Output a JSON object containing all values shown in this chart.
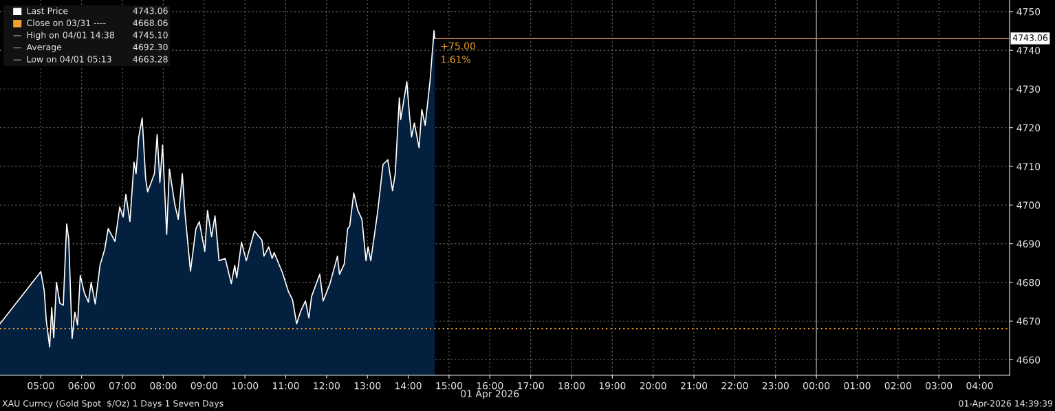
{
  "chart_data": {
    "type": "area",
    "x": [
      "2026-04-01T04:00",
      "2026-04-01T05:00",
      "2026-04-01T05:05",
      "2026-04-01T05:08",
      "2026-04-01T05:13",
      "2026-04-01T05:16",
      "2026-04-01T05:19",
      "2026-04-01T05:23",
      "2026-04-01T05:28",
      "2026-04-01T05:33",
      "2026-04-01T05:38",
      "2026-04-01T05:41",
      "2026-04-01T05:46",
      "2026-04-01T05:50",
      "2026-04-01T05:54",
      "2026-04-01T05:58",
      "2026-04-01T06:04",
      "2026-04-01T06:10",
      "2026-04-01T06:14",
      "2026-04-01T06:20",
      "2026-04-01T06:27",
      "2026-04-01T06:34",
      "2026-04-01T06:39",
      "2026-04-01T06:49",
      "2026-04-01T06:56",
      "2026-04-01T07:01",
      "2026-04-01T07:05",
      "2026-04-01T07:11",
      "2026-04-01T07:17",
      "2026-04-01T07:20",
      "2026-04-01T07:24",
      "2026-04-01T07:29",
      "2026-04-01T07:34",
      "2026-04-01T07:37",
      "2026-04-01T07:47",
      "2026-04-01T07:51",
      "2026-04-01T07:55",
      "2026-04-01T07:59",
      "2026-04-01T08:05",
      "2026-04-01T08:09",
      "2026-04-01T08:17",
      "2026-04-01T08:22",
      "2026-04-01T08:28",
      "2026-04-01T08:32",
      "2026-04-01T08:40",
      "2026-04-01T08:48",
      "2026-04-01T08:53",
      "2026-04-01T09:01",
      "2026-04-01T09:05",
      "2026-04-01T09:11",
      "2026-04-01T09:16",
      "2026-04-01T09:22",
      "2026-04-01T09:31",
      "2026-04-01T09:40",
      "2026-04-01T09:45",
      "2026-04-01T09:48",
      "2026-04-01T09:55",
      "2026-04-01T10:02",
      "2026-04-01T10:14",
      "2026-04-01T10:25",
      "2026-04-01T10:28",
      "2026-04-01T10:35",
      "2026-04-01T10:40",
      "2026-04-01T10:43",
      "2026-04-01T10:55",
      "2026-04-01T11:04",
      "2026-04-01T11:10",
      "2026-04-01T11:16",
      "2026-04-01T11:22",
      "2026-04-01T11:29",
      "2026-04-01T11:34",
      "2026-04-01T11:38",
      "2026-04-01T11:50",
      "2026-04-01T11:55",
      "2026-04-01T12:05",
      "2026-04-01T12:16",
      "2026-04-01T12:19",
      "2026-04-01T12:26",
      "2026-04-01T12:31",
      "2026-04-01T12:34",
      "2026-04-01T12:40",
      "2026-04-01T12:46",
      "2026-04-01T12:52",
      "2026-04-01T12:58",
      "2026-04-01T13:01",
      "2026-04-01T13:05",
      "2026-04-01T13:15",
      "2026-04-01T13:23",
      "2026-04-01T13:30",
      "2026-04-01T13:37",
      "2026-04-01T13:41",
      "2026-04-01T13:47",
      "2026-04-01T13:49",
      "2026-04-01T13:58",
      "2026-04-01T14:02",
      "2026-04-01T14:05",
      "2026-04-01T14:09",
      "2026-04-01T14:16",
      "2026-04-01T14:20",
      "2026-04-01T14:25",
      "2026-04-01T14:32",
      "2026-04-01T14:38",
      "2026-04-01T14:39"
    ],
    "series": [
      {
        "name": "Last Price",
        "color": "#ffffff",
        "values": [
          4669.3,
          4682.8,
          4677.9,
          4670.2,
          4663.3,
          4673.5,
          4665.7,
          4680.0,
          4674.6,
          4674.1,
          4695.1,
          4691.2,
          4665.5,
          4672.3,
          4669.0,
          4681.8,
          4677.3,
          4674.9,
          4680.0,
          4674.4,
          4684.4,
          4688.6,
          4693.9,
          4690.6,
          4699.5,
          4696.9,
          4702.8,
          4695.7,
          4711.1,
          4708.1,
          4717.6,
          4722.5,
          4707.0,
          4703.4,
          4708.1,
          4718.2,
          4705.8,
          4715.5,
          4692.4,
          4709.3,
          4700.1,
          4696.3,
          4708.1,
          4697.8,
          4682.9,
          4693.9,
          4695.7,
          4688.0,
          4698.6,
          4691.8,
          4697.2,
          4685.6,
          4686.2,
          4679.7,
          4684.4,
          4681.2,
          4690.4,
          4685.6,
          4693.3,
          4690.9,
          4686.8,
          4689.2,
          4686.2,
          4687.7,
          4682.6,
          4677.6,
          4675.5,
          4669.3,
          4672.6,
          4675.2,
          4670.8,
          4676.4,
          4682.1,
          4675.2,
          4679.7,
          4686.8,
          4682.1,
          4684.7,
          4693.9,
          4694.5,
          4703.1,
          4698.6,
          4696.3,
          4685.6,
          4689.2,
          4685.6,
          4698.1,
          4710.5,
          4711.7,
          4703.7,
          4708.1,
          4727.7,
          4722.1,
          4731.9,
          4723.0,
          4717.6,
          4721.2,
          4714.8,
          4724.7,
          4720.6,
          4731.9,
          4745.1,
          4743.1
        ]
      }
    ],
    "xlim": [
      "2026-04-01T04:00",
      "2026-04-02T04:44"
    ],
    "xticks": [
      {
        "value": "2026-04-01T05:00",
        "label": "05:00"
      },
      {
        "value": "2026-04-01T06:00",
        "label": "06:00"
      },
      {
        "value": "2026-04-01T07:00",
        "label": "07:00"
      },
      {
        "value": "2026-04-01T08:00",
        "label": "08:00"
      },
      {
        "value": "2026-04-01T09:00",
        "label": "09:00"
      },
      {
        "value": "2026-04-01T10:00",
        "label": "10:00"
      },
      {
        "value": "2026-04-01T11:00",
        "label": "11:00"
      },
      {
        "value": "2026-04-01T12:00",
        "label": "12:00"
      },
      {
        "value": "2026-04-01T13:00",
        "label": "13:00"
      },
      {
        "value": "2026-04-01T14:00",
        "label": "14:00"
      },
      {
        "value": "2026-04-01T15:00",
        "label": "15:00"
      },
      {
        "value": "2026-04-01T16:00",
        "label": "16:00"
      },
      {
        "value": "2026-04-01T17:00",
        "label": "17:00"
      },
      {
        "value": "2026-04-01T18:00",
        "label": "18:00"
      },
      {
        "value": "2026-04-01T19:00",
        "label": "19:00"
      },
      {
        "value": "2026-04-01T20:00",
        "label": "20:00"
      },
      {
        "value": "2026-04-01T21:00",
        "label": "21:00"
      },
      {
        "value": "2026-04-01T22:00",
        "label": "22:00"
      },
      {
        "value": "2026-04-01T23:00",
        "label": "23:00"
      },
      {
        "value": "2026-04-02T00:00",
        "label": "00:00"
      },
      {
        "value": "2026-04-02T01:00",
        "label": "01:00"
      },
      {
        "value": "2026-04-02T02:00",
        "label": "02:00"
      },
      {
        "value": "2026-04-02T03:00",
        "label": "03:00"
      },
      {
        "value": "2026-04-02T04:00",
        "label": "04:00"
      }
    ],
    "ylim": [
      4656,
      4753
    ],
    "yticks": [
      4660,
      4670,
      4680,
      4690,
      4700,
      4710,
      4720,
      4730,
      4740,
      4750
    ],
    "grid": true,
    "legend": "top left",
    "ref_lines": [
      {
        "axis": "y",
        "value": 4668.06,
        "label": "Close on 03/31 ----",
        "color": "#f0a030",
        "line_style": "dotted"
      },
      {
        "axis": "y",
        "value": 4743.06,
        "label": "4743.06",
        "color": "#e0905a",
        "line_style": "solid"
      },
      {
        "axis": "x",
        "value": "2026-04-02T00:00",
        "color": "#9a9a9a",
        "line_style": "solid"
      }
    ],
    "annotations": [
      "4743.06",
      "4668.06",
      "High on 04/01 14:38",
      "4745.10",
      "Average",
      "4692.30",
      "Low on 04/01 05:13",
      "4663.28",
      {
        "text": "+75.00",
        "x": "2026-04-01T14:39",
        "y": 4743.1
      },
      {
        "text": "1.61%",
        "x": "2026-04-01T14:39",
        "y": 4743.1
      },
      "01 Apr 2026",
      "XAU Curncy (Gold Spot  $/Oz) 1 Days 1 Seven Days",
      "01-Apr-2026 14:39:39"
    ]
  }
}
